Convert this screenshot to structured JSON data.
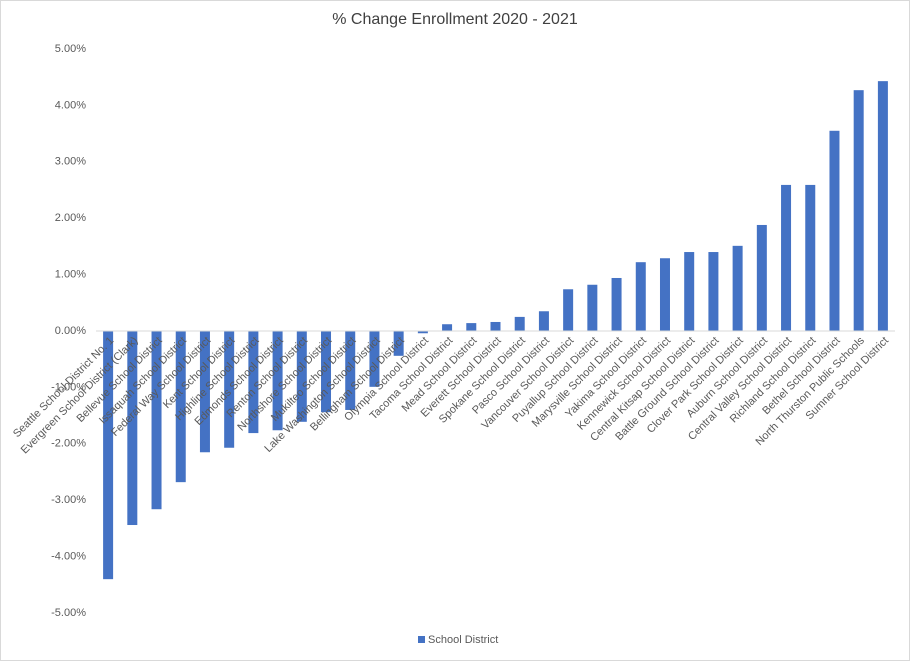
{
  "chart_data": {
    "type": "bar",
    "title": "% Change Enrollment 2020 - 2021",
    "categories": [
      "Seattle School District No. 1",
      "Evergreen School District (Clark)",
      "Bellevue School District",
      "Issaquah School District",
      "Federal Way School District",
      "Kent School District",
      "Highline School District",
      "Edmonds School District",
      "Renton School District",
      "Northshore School District",
      "Mukilteo School District",
      "Lake Washington School District",
      "Bellingham School District",
      "Olympia School District",
      "Tacoma School District",
      "Mead School District",
      "Everett School District",
      "Spokane School District",
      "Pasco School District",
      "Vancouver School District",
      "Puyallup School District",
      "Marysville School District",
      "Yakima School District",
      "Kennewick School District",
      "Central Kitsap School District",
      "Battle Ground School District",
      "Clover Park School District",
      "Auburn School District",
      "Central Valley School District",
      "Richland School District",
      "Bethel School District",
      "North Thurston Public Schools",
      "Sumner School District"
    ],
    "series": [
      {
        "name": "School District",
        "color": "#4472c4",
        "values": [
          -4.4,
          -3.44,
          -3.16,
          -2.68,
          -2.15,
          -2.07,
          -1.81,
          -1.76,
          -1.61,
          -1.44,
          -1.4,
          -0.99,
          -0.44,
          -0.04,
          0.12,
          0.14,
          0.16,
          0.25,
          0.35,
          0.74,
          0.82,
          0.94,
          1.22,
          1.29,
          1.4,
          1.4,
          1.51,
          1.88,
          2.59,
          2.59,
          3.55,
          4.27,
          4.43
        ]
      }
    ],
    "ylim": [
      -5,
      5
    ],
    "yticks": [
      {
        "value": -5,
        "label": "-5.00%"
      },
      {
        "value": -4,
        "label": "-4.00%"
      },
      {
        "value": -3,
        "label": "-3.00%"
      },
      {
        "value": -2,
        "label": "-2.00%"
      },
      {
        "value": -1,
        "label": "-1.00%"
      },
      {
        "value": 0,
        "label": "0.00%"
      },
      {
        "value": 1,
        "label": "1.00%"
      },
      {
        "value": 2,
        "label": "2.00%"
      },
      {
        "value": 3,
        "label": "3.00%"
      },
      {
        "value": 4,
        "label": "4.00%"
      },
      {
        "value": 5,
        "label": "5.00%"
      }
    ],
    "grid": false,
    "legend": "bottom"
  }
}
